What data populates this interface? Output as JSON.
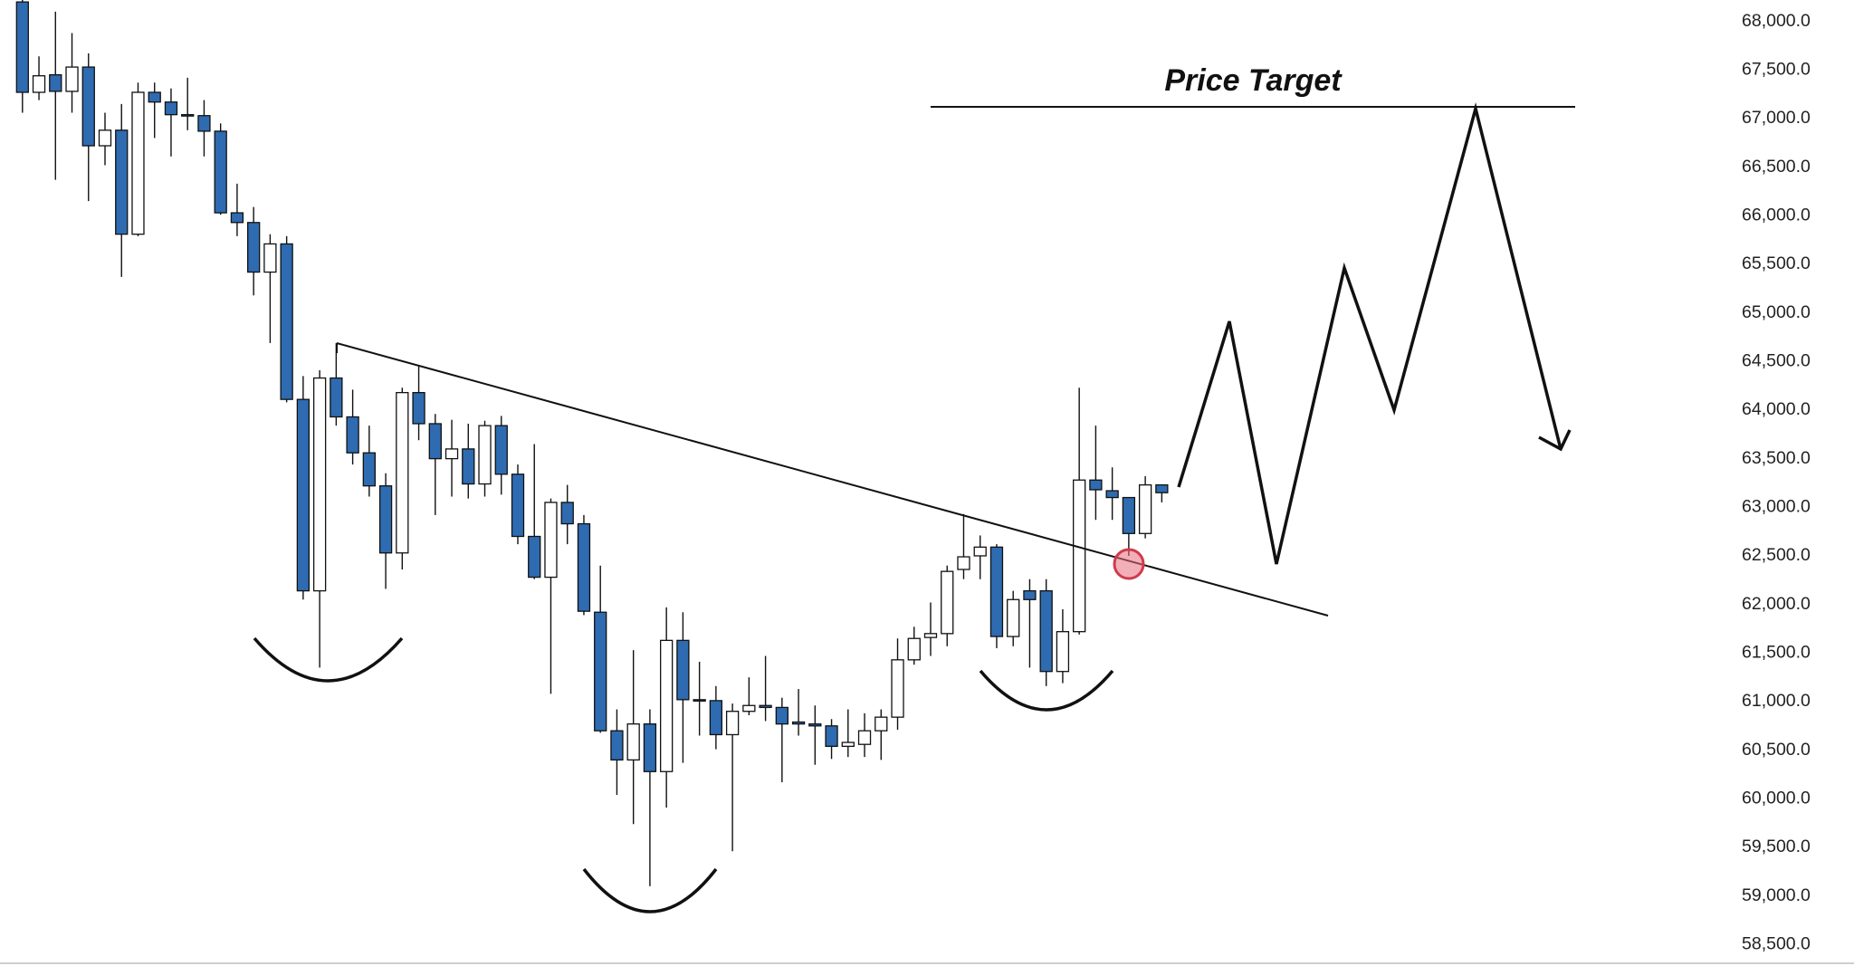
{
  "chart_data": {
    "type": "candlestick",
    "annotation": "Price Target",
    "up_color": "#ffffff",
    "down_color": "#2e6bb0",
    "ylim": [
      58270,
      68220
    ],
    "yticks": [
      {
        "value": 68000,
        "label": "68,000.0"
      },
      {
        "value": 67500,
        "label": "67,500.0"
      },
      {
        "value": 67000,
        "label": "67,000.0"
      },
      {
        "value": 66500,
        "label": "66,500.0"
      },
      {
        "value": 66000,
        "label": "66,000.0"
      },
      {
        "value": 65500,
        "label": "65,500.0"
      },
      {
        "value": 65000,
        "label": "65,000.0"
      },
      {
        "value": 64500,
        "label": "64,500.0"
      },
      {
        "value": 64000,
        "label": "64,000.0"
      },
      {
        "value": 63500,
        "label": "63,500.0"
      },
      {
        "value": 63000,
        "label": "63,000.0"
      },
      {
        "value": 62500,
        "label": "62,500.0"
      },
      {
        "value": 62000,
        "label": "62,000.0"
      },
      {
        "value": 61500,
        "label": "61,500.0"
      },
      {
        "value": 61000,
        "label": "61,000.0"
      },
      {
        "value": 60500,
        "label": "60,500.0"
      },
      {
        "value": 60000,
        "label": "60,000.0"
      },
      {
        "value": 59500,
        "label": "59,500.0"
      },
      {
        "value": 59000,
        "label": "59,000.0"
      },
      {
        "value": 58500,
        "label": "58,500.0"
      }
    ],
    "open": [
      68200,
      67270,
      67450,
      67280,
      67530,
      66720,
      66880,
      65810,
      67270,
      67170,
      67040,
      67030,
      66870,
      66030,
      65930,
      65420,
      65710,
      64110,
      62140,
      64330,
      63930,
      63560,
      63220,
      62530,
      64180,
      63860,
      63500,
      63600,
      63240,
      63840,
      63340,
      62700,
      62280,
      63050,
      62830,
      61920,
      60700,
      60400,
      60770,
      60280,
      61630,
      61020,
      61010,
      60660,
      60900,
      60960,
      60940,
      60790,
      60770,
      60750,
      60540,
      60560,
      60700,
      60840,
      61430,
      61660,
      61700,
      62360,
      62500,
      62590,
      61670,
      62140,
      62140,
      61310,
      61720,
      63280,
      63170,
      63100,
      62730,
      63230
    ],
    "high": [
      68250,
      67640,
      68100,
      67880,
      67670,
      67060,
      67150,
      67370,
      67370,
      67310,
      67420,
      67190,
      66950,
      66330,
      66090,
      65810,
      65790,
      64350,
      64410,
      64690,
      64210,
      63840,
      63350,
      64230,
      64450,
      63960,
      63900,
      63860,
      63890,
      63940,
      63440,
      63650,
      63090,
      63230,
      62920,
      62400,
      60920,
      61530,
      60920,
      61970,
      61920,
      61410,
      61160,
      60980,
      61250,
      61470,
      61040,
      61130,
      60960,
      60820,
      60920,
      60880,
      60920,
      61650,
      61770,
      62020,
      62400,
      62930,
      62710,
      62620,
      62140,
      62260,
      62260,
      61950,
      64230,
      63840,
      63410,
      63100,
      63320,
      63230
    ],
    "low": [
      67060,
      67190,
      66370,
      67060,
      66150,
      66520,
      65370,
      65790,
      66800,
      66610,
      66880,
      66610,
      66010,
      65790,
      65180,
      64690,
      64080,
      62050,
      61350,
      63840,
      63440,
      63110,
      62160,
      62360,
      63690,
      62920,
      63110,
      63090,
      63110,
      63130,
      62620,
      62260,
      61080,
      62620,
      61890,
      60680,
      60040,
      59740,
      59100,
      59910,
      60370,
      60650,
      60510,
      59460,
      60860,
      60800,
      60170,
      60650,
      60350,
      60410,
      60430,
      60430,
      60400,
      60710,
      61380,
      61470,
      61570,
      62260,
      62260,
      61550,
      61570,
      61350,
      61160,
      61190,
      61690,
      62870,
      62870,
      62500,
      62680,
      63050
    ],
    "close": [
      67270,
      67440,
      67280,
      67530,
      66720,
      66880,
      65810,
      67270,
      67170,
      67040,
      67030,
      66870,
      66030,
      65930,
      65420,
      65710,
      64110,
      62140,
      64330,
      63930,
      63560,
      63220,
      62530,
      64180,
      63860,
      63500,
      63600,
      63240,
      63840,
      63340,
      62700,
      62280,
      63050,
      62830,
      61930,
      60700,
      60400,
      60770,
      60280,
      61630,
      61020,
      61010,
      60660,
      60900,
      60960,
      60940,
      60770,
      60770,
      60750,
      60540,
      60580,
      60700,
      60840,
      61430,
      61650,
      61700,
      62340,
      62490,
      62590,
      61670,
      62050,
      62050,
      61310,
      61720,
      63280,
      63180,
      63100,
      62730,
      63230,
      63150
    ]
  }
}
